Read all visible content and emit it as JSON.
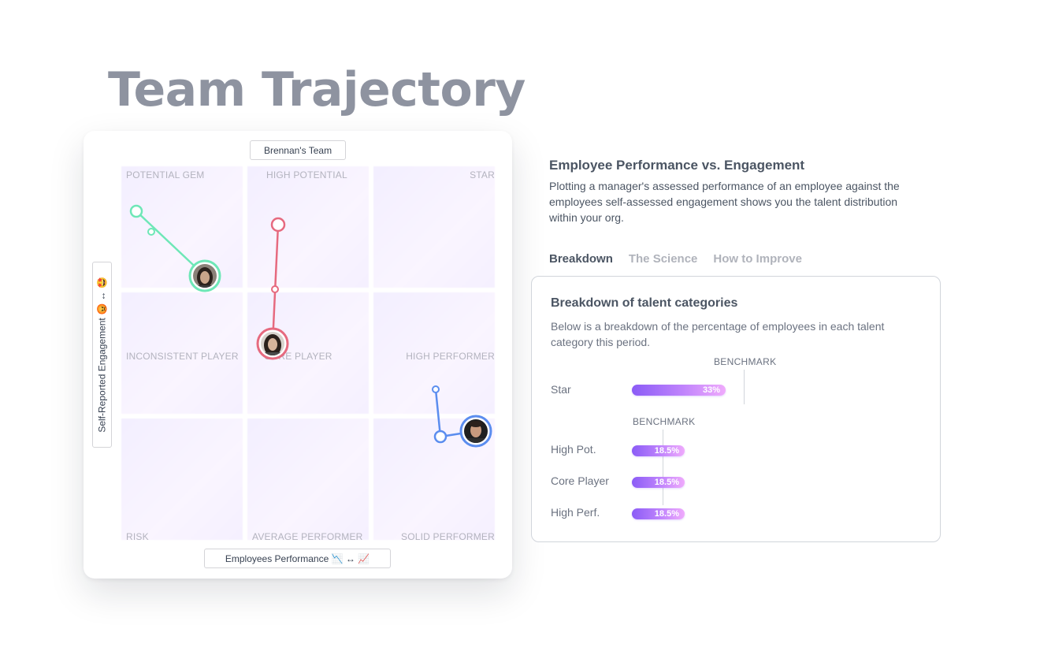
{
  "page": {
    "title": "Team Trajectory"
  },
  "chart": {
    "team_label": "Brennan's Team",
    "x_axis_label": "Employees Performance 📉 ↔ 📈",
    "y_axis_label": "Self-Reported Engagement 😡 ↔ 🤩",
    "quadrants": [
      {
        "label": "POTENTIAL GEM"
      },
      {
        "label": "HIGH POTENTIAL"
      },
      {
        "label": "STAR"
      },
      {
        "label": "INCONSISTENT PLAYER"
      },
      {
        "label": "CORE PLAYER"
      },
      {
        "label": "HIGH PERFORMER"
      },
      {
        "label": "RISK"
      },
      {
        "label": "AVERAGE PERFORMER"
      },
      {
        "label": "SOLID PERFORMER"
      }
    ],
    "colors": {
      "green": "#6ee7b7",
      "red": "#e66a7f",
      "blue": "#5b8def"
    }
  },
  "description": {
    "title": "Employee Performance vs. Engagement",
    "text": "Plotting a manager's assessed performance of an employee against the employees self-assessed engagement shows you the talent distribution within your org."
  },
  "tabs": [
    {
      "label": "Breakdown",
      "active": true
    },
    {
      "label": "The Science",
      "active": false
    },
    {
      "label": "How to Improve",
      "active": false
    }
  ],
  "breakdown": {
    "title": "Breakdown of talent categories",
    "description": "Below is a breakdown of the percentage of employees in each talent category this period.",
    "benchmark_label": "BENCHMARK",
    "rows": [
      {
        "label": "Star",
        "value": "33%",
        "fraction": 0.33
      },
      {
        "label": "High Pot.",
        "value": "18.5%",
        "fraction": 0.185
      },
      {
        "label": "Core Player",
        "value": "18.5%",
        "fraction": 0.185
      },
      {
        "label": "High Perf.",
        "value": "18.5%",
        "fraction": 0.185
      }
    ]
  }
}
